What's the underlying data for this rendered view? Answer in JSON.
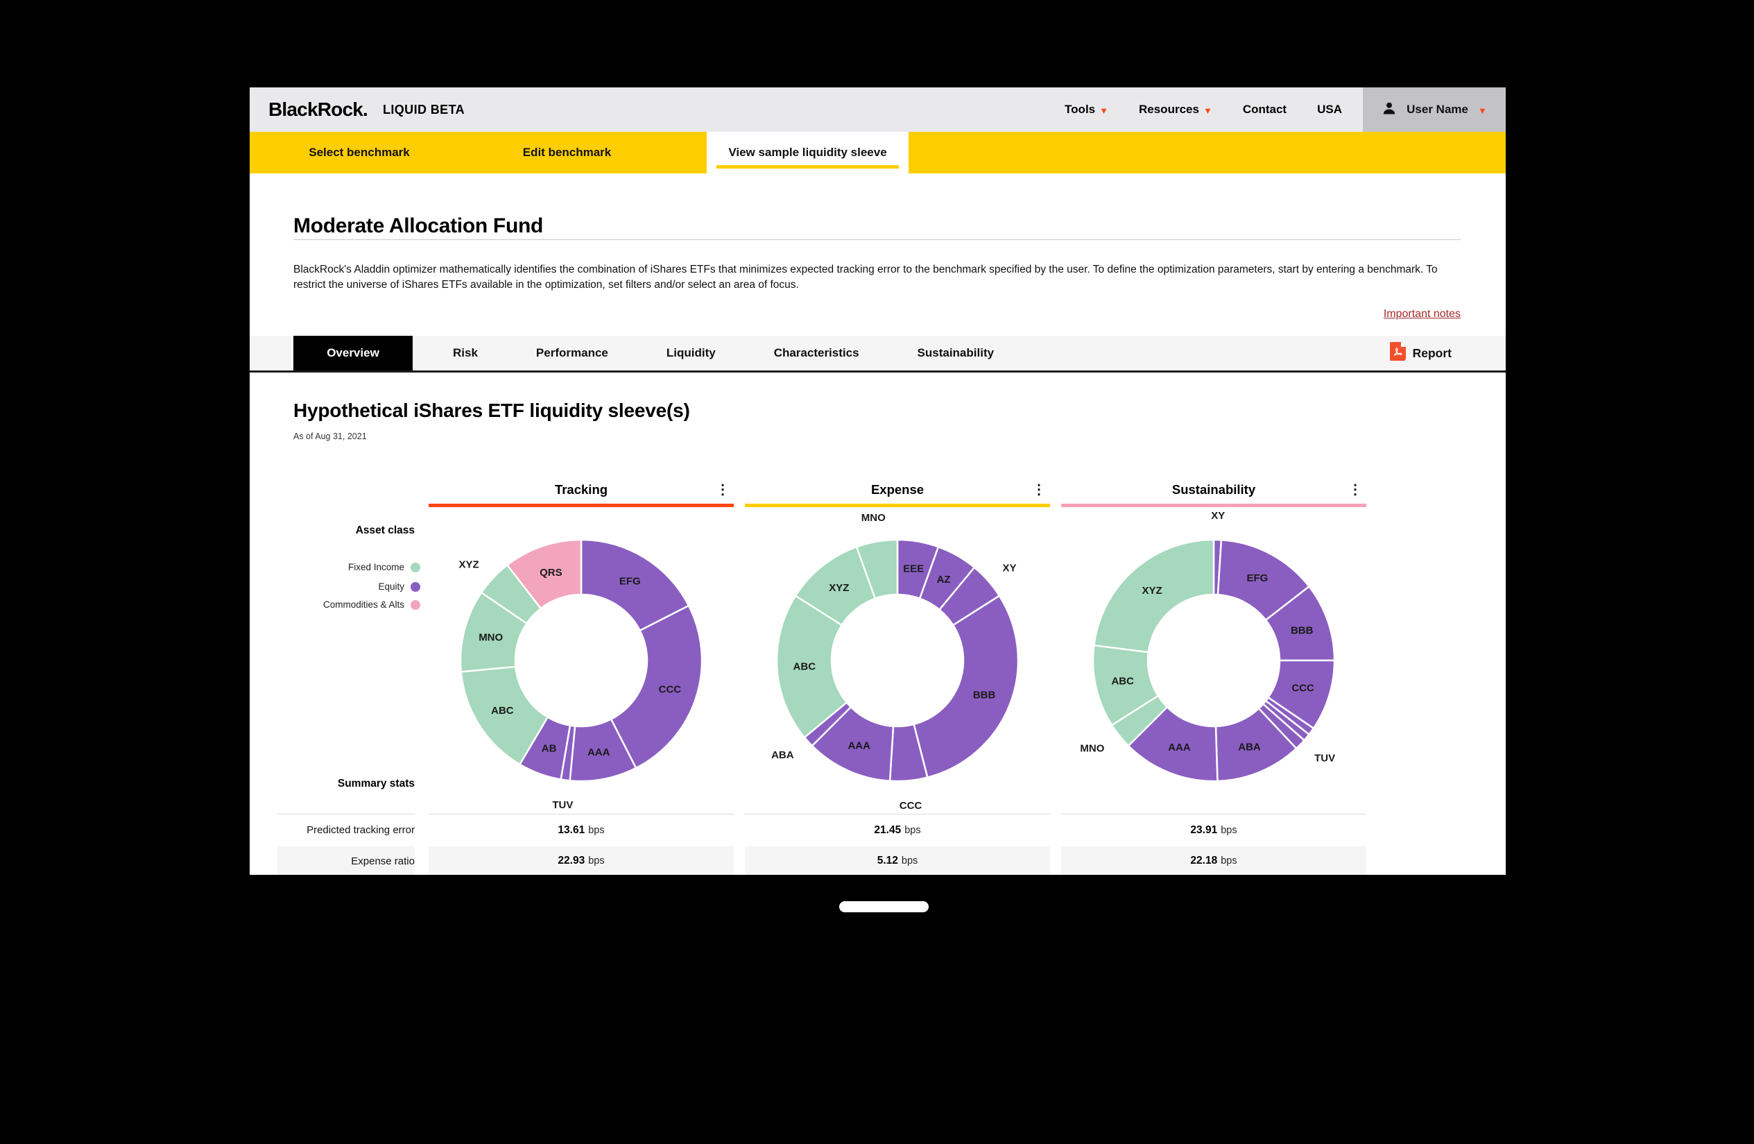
{
  "header": {
    "logo": "BlackRock.",
    "product": "LIQUID BETA",
    "nav": [
      {
        "label": "Tools",
        "has_chevron": true
      },
      {
        "label": "Resources",
        "has_chevron": true
      },
      {
        "label": "Contact",
        "has_chevron": false
      },
      {
        "label": "USA",
        "has_chevron": false
      }
    ],
    "user": {
      "name": "User Name"
    }
  },
  "benchmark_tabs": {
    "items": [
      {
        "label": "Select benchmark",
        "active": false
      },
      {
        "label": "Edit benchmark",
        "active": false
      },
      {
        "label": "View sample liquidity sleeve",
        "active": true
      }
    ]
  },
  "fund": {
    "title": "Moderate Allocation Fund",
    "description": "BlackRock's Aladdin optimizer mathematically identifies the combination of iShares ETFs that minimizes expected tracking error to the benchmark specified by the user. To define the optimization parameters, start by entering a benchmark. To restrict the universe of iShares ETFs available in the optimization, set filters and/or select an area of focus.",
    "important_notes": "Important notes"
  },
  "tabs": {
    "items": [
      {
        "label": "Overview",
        "active": true
      },
      {
        "label": "Risk",
        "active": false
      },
      {
        "label": "Performance",
        "active": false
      },
      {
        "label": "Liquidity",
        "active": false
      },
      {
        "label": "Characteristics",
        "active": false
      },
      {
        "label": "Sustainability",
        "active": false
      }
    ],
    "report_label": "Report"
  },
  "section": {
    "title": "Hypothetical iShares ETF liquidity sleeve(s)",
    "as_of": "As of Aug 31, 2021"
  },
  "legend": {
    "title": "Asset class",
    "items": [
      {
        "label": "Fixed Income",
        "color": "#A5D8BC"
      },
      {
        "label": "Equity",
        "color": "#8A5EC1"
      },
      {
        "label": "Commodities & Alts",
        "color": "#F3A5BE"
      }
    ]
  },
  "asset_colors": {
    "fixed_income": "#A5D8BC",
    "equity": "#8A5EC1",
    "commodities_alts": "#F3A5BE"
  },
  "colors": {
    "brand_yellow": "#FFCE00",
    "accent_orange_red": "#FF4713",
    "link_red": "#A52A2A",
    "header_gray": "#E9E9EB",
    "user_area_gray": "#C3C3C7"
  },
  "summary": {
    "title": "Summary stats",
    "rows": [
      {
        "label": "Predicted tracking error",
        "unit": "bps",
        "values": [
          "13.61",
          "21.45",
          "23.91"
        ]
      },
      {
        "label": "Expense ratio",
        "unit": "bps",
        "values": [
          "22.93",
          "5.12",
          "22.18"
        ]
      }
    ]
  },
  "chart_data": [
    {
      "type": "pie",
      "variant": "donut",
      "title": "Tracking",
      "accent": "#FF4713",
      "stats": {
        "predicted_tracking_error_bps": 13.61,
        "expense_ratio_bps": 22.93
      },
      "slices": [
        {
          "label": "EFG",
          "asset": "equity",
          "value": 17.5,
          "label_pos": "in"
        },
        {
          "label": "CCC",
          "asset": "equity",
          "value": 25.0,
          "label_pos": "in"
        },
        {
          "label": "AAA",
          "asset": "equity",
          "value": 9.0,
          "label_pos": "in"
        },
        {
          "label": "TUV",
          "asset": "equity",
          "value": 1.2,
          "label_pos": "out"
        },
        {
          "label": "AB",
          "asset": "equity",
          "value": 5.8,
          "label_pos": "in"
        },
        {
          "label": "ABC",
          "asset": "fixed_income",
          "value": 15.0,
          "label_pos": "in"
        },
        {
          "label": "MNO",
          "asset": "fixed_income",
          "value": 11.0,
          "label_pos": "in"
        },
        {
          "label": "XYZ",
          "asset": "fixed_income",
          "value": 5.0,
          "label_pos": "out"
        },
        {
          "label": "QRS",
          "asset": "commodities_alts",
          "value": 10.5,
          "label_pos": "in"
        }
      ]
    },
    {
      "type": "pie",
      "variant": "donut",
      "title": "Expense",
      "accent": "#FFCE00",
      "stats": {
        "predicted_tracking_error_bps": 21.45,
        "expense_ratio_bps": 5.12
      },
      "slices": [
        {
          "label": "EEE",
          "asset": "equity",
          "value": 5.5,
          "label_pos": "in"
        },
        {
          "label": "AZ",
          "asset": "equity",
          "value": 5.5,
          "label_pos": "in"
        },
        {
          "label": "XY",
          "asset": "equity",
          "value": 5.0,
          "label_pos": "out"
        },
        {
          "label": "BBB",
          "asset": "equity",
          "value": 30.0,
          "label_pos": "in"
        },
        {
          "label": "CCC",
          "asset": "equity",
          "value": 5.0,
          "label_pos": "out"
        },
        {
          "label": "AAA",
          "asset": "equity",
          "value": 11.5,
          "label_pos": "in"
        },
        {
          "label": "ABA",
          "asset": "equity",
          "value": 1.5,
          "label_pos": "out"
        },
        {
          "label": "ABC",
          "asset": "fixed_income",
          "value": 20.0,
          "label_pos": "in"
        },
        {
          "label": "XYZ",
          "asset": "fixed_income",
          "value": 10.5,
          "label_pos": "in"
        },
        {
          "label": "MNO",
          "asset": "fixed_income",
          "value": 5.5,
          "label_pos": "out"
        }
      ]
    },
    {
      "type": "pie",
      "variant": "donut",
      "title": "Sustainability",
      "accent": "#F9A1B7",
      "stats": {
        "predicted_tracking_error_bps": 23.91,
        "expense_ratio_bps": 22.18
      },
      "slices": [
        {
          "label": "XY",
          "asset": "equity",
          "value": 1.0,
          "label_pos": "out"
        },
        {
          "label": "EFG",
          "asset": "equity",
          "value": 13.5,
          "label_pos": "in"
        },
        {
          "label": "BBB",
          "asset": "equity",
          "value": 10.5,
          "label_pos": "in"
        },
        {
          "label": "CCC",
          "asset": "equity",
          "value": 9.5,
          "label_pos": "in"
        },
        {
          "label": "",
          "asset": "equity",
          "value": 1.0,
          "label_pos": "none"
        },
        {
          "label": "",
          "asset": "equity",
          "value": 1.0,
          "label_pos": "none"
        },
        {
          "label": "TUV",
          "asset": "equity",
          "value": 1.5,
          "label_pos": "out"
        },
        {
          "label": "ABA",
          "asset": "equity",
          "value": 11.5,
          "label_pos": "in"
        },
        {
          "label": "AAA",
          "asset": "equity",
          "value": 13.0,
          "label_pos": "in"
        },
        {
          "label": "MNO",
          "asset": "fixed_income",
          "value": 3.5,
          "label_pos": "out"
        },
        {
          "label": "ABC",
          "asset": "fixed_income",
          "value": 11.0,
          "label_pos": "in"
        },
        {
          "label": "XYZ",
          "asset": "fixed_income",
          "value": 23.0,
          "label_pos": "in"
        }
      ]
    }
  ]
}
